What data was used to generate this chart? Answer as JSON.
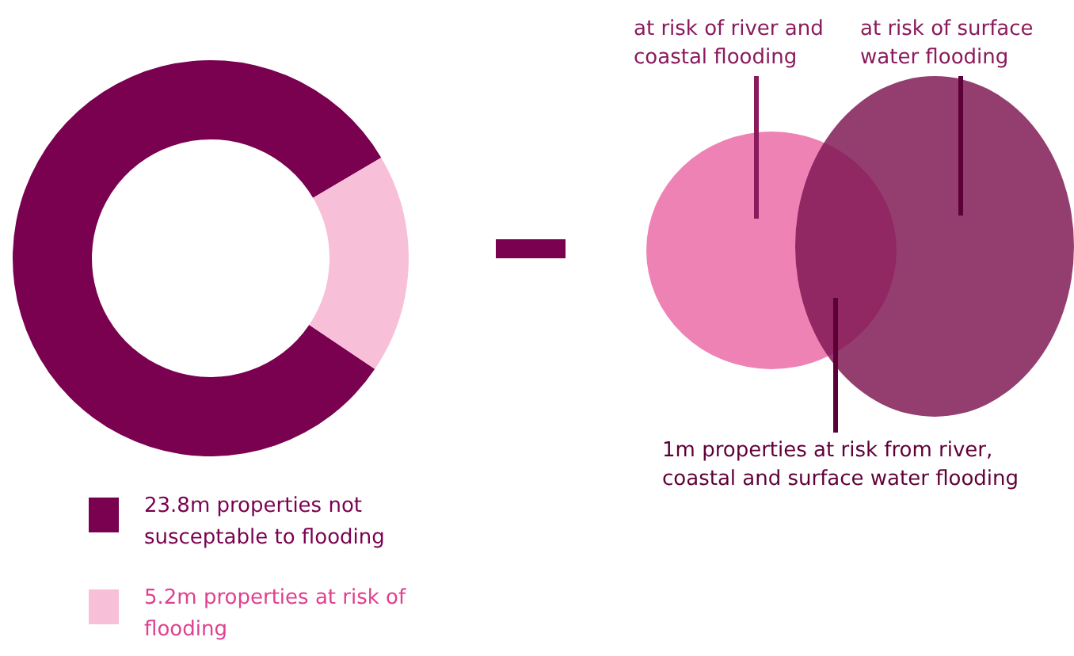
{
  "chart_data": [
    {
      "type": "donut",
      "categories": [
        "23.8m properties not susceptable to flooding",
        "5.2m properties at risk of flooding"
      ],
      "values": [
        23.8,
        5.2
      ],
      "colors": [
        "#7a0050",
        "#f7bfd8"
      ],
      "legend": "bottom"
    },
    {
      "type": "other",
      "annotations": [
        "at risk of river and coastal flooding",
        "at risk of surface water flooding",
        "1m properties at risk from river, coastal and surface water flooding"
      ]
    }
  ]
}
